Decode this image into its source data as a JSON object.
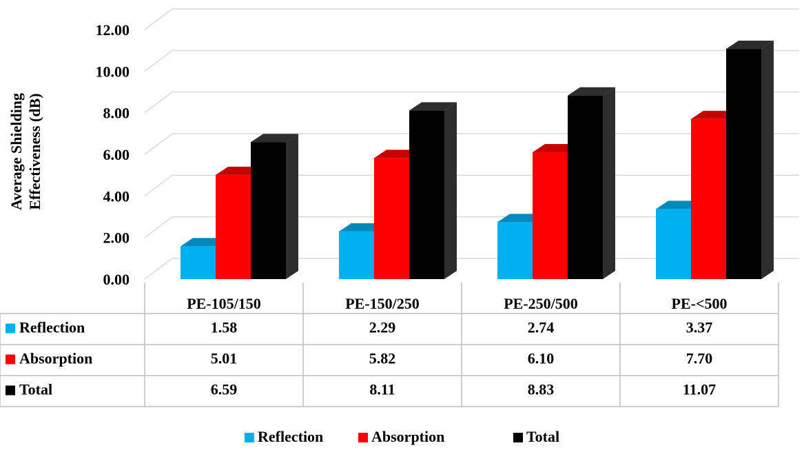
{
  "chart_data": {
    "type": "bar3d",
    "y_label": "Average Shielding Effectiveness (dB)",
    "categories": [
      "PE-105/150",
      "PE-150/250",
      "PE-250/500",
      "PE-<500"
    ],
    "series": [
      {
        "name": "Reflection",
        "color": "#00b0f0",
        "values": [
          1.58,
          2.29,
          2.74,
          3.37
        ],
        "value_labels": [
          "1.58",
          "2.29",
          "2.74",
          "3.37"
        ]
      },
      {
        "name": "Absorption",
        "color": "#ff0000",
        "values": [
          5.01,
          5.82,
          6.1,
          7.7
        ],
        "value_labels": [
          "5.01",
          "5.82",
          "6.10",
          "7.70"
        ]
      },
      {
        "name": "Total",
        "color": "#000000",
        "values": [
          6.59,
          8.11,
          8.83,
          11.07
        ],
        "value_labels": [
          "6.59",
          "8.11",
          "8.83",
          "11.07"
        ]
      }
    ],
    "ylim": [
      0,
      12
    ],
    "yticks": [
      {
        "value": 0,
        "label": "0.00"
      },
      {
        "value": 2,
        "label": "2.00"
      },
      {
        "value": 4,
        "label": "4.00"
      },
      {
        "value": 6,
        "label": "6.00"
      },
      {
        "value": 8,
        "label": "8.00"
      },
      {
        "value": 10,
        "label": "10.00"
      },
      {
        "value": 12,
        "label": "12.00"
      }
    ],
    "grid": true
  }
}
